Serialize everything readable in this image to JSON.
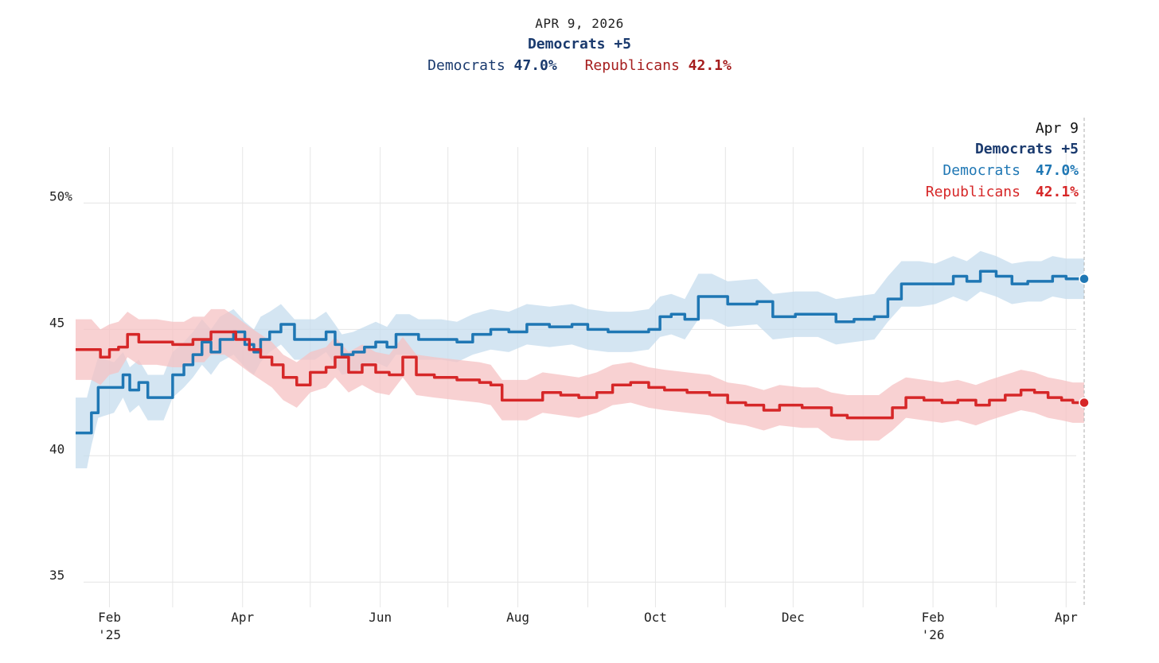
{
  "header": {
    "date": "APR 9, 2026",
    "lead": "Democrats +5",
    "dem_label": "Democrats",
    "dem_value": "47.0%",
    "rep_label": "Republicans",
    "rep_value": "42.1%"
  },
  "annotation": {
    "date": "Apr 9",
    "lead": "Democrats +5",
    "dem_label": "Democrats",
    "dem_value": "47.0%",
    "rep_label": "Republicans",
    "rep_value": "42.1%"
  },
  "colors": {
    "dem_line": "#1f77b4",
    "dem_band": "#c6dcee",
    "rep_line": "#d62728",
    "rep_band": "#f5c2c3",
    "dem_text": "#1a3a6e",
    "rep_text": "#a51d1d"
  },
  "chart_data": {
    "type": "line",
    "x_axis": {
      "range": [
        "2025-01-17",
        "2026-04-09"
      ],
      "ticks": [
        {
          "date": "2025-02-01",
          "label": "Feb",
          "sublabel": "'25"
        },
        {
          "date": "2025-04-01",
          "label": "Apr"
        },
        {
          "date": "2025-06-01",
          "label": "Jun"
        },
        {
          "date": "2025-08-01",
          "label": "Aug"
        },
        {
          "date": "2025-10-01",
          "label": "Oct"
        },
        {
          "date": "2025-12-01",
          "label": "Dec"
        },
        {
          "date": "2026-02-01",
          "label": "Feb",
          "sublabel": "'26"
        },
        {
          "date": "2026-04-01",
          "label": "Apr"
        }
      ]
    },
    "y_axis": {
      "range": [
        34,
        53
      ],
      "ticks": [
        {
          "value": 35,
          "label": "35"
        },
        {
          "value": 40,
          "label": "40"
        },
        {
          "value": 45,
          "label": "45"
        },
        {
          "value": 50,
          "label": "50%"
        }
      ]
    },
    "grid": true,
    "series": [
      {
        "name": "Democrats",
        "points": [
          [
            "2025-01-17",
            40.9
          ],
          [
            "2025-01-22",
            40.9
          ],
          [
            "2025-01-24",
            41.7
          ],
          [
            "2025-01-27",
            42.7
          ],
          [
            "2025-02-03",
            42.7
          ],
          [
            "2025-02-07",
            43.2
          ],
          [
            "2025-02-10",
            42.6
          ],
          [
            "2025-02-14",
            42.9
          ],
          [
            "2025-02-18",
            42.3
          ],
          [
            "2025-02-25",
            42.3
          ],
          [
            "2025-03-01",
            43.2
          ],
          [
            "2025-03-06",
            43.6
          ],
          [
            "2025-03-10",
            44.0
          ],
          [
            "2025-03-14",
            44.5
          ],
          [
            "2025-03-18",
            44.1
          ],
          [
            "2025-03-22",
            44.6
          ],
          [
            "2025-03-28",
            44.9
          ],
          [
            "2025-04-02",
            44.4
          ],
          [
            "2025-04-06",
            44.1
          ],
          [
            "2025-04-09",
            44.6
          ],
          [
            "2025-04-13",
            44.9
          ],
          [
            "2025-04-18",
            45.2
          ],
          [
            "2025-04-24",
            44.6
          ],
          [
            "2025-05-03",
            44.6
          ],
          [
            "2025-05-08",
            44.9
          ],
          [
            "2025-05-12",
            44.4
          ],
          [
            "2025-05-15",
            44.0
          ],
          [
            "2025-05-20",
            44.1
          ],
          [
            "2025-05-25",
            44.3
          ],
          [
            "2025-05-30",
            44.5
          ],
          [
            "2025-06-04",
            44.3
          ],
          [
            "2025-06-08",
            44.8
          ],
          [
            "2025-06-14",
            44.8
          ],
          [
            "2025-06-18",
            44.6
          ],
          [
            "2025-06-28",
            44.6
          ],
          [
            "2025-07-05",
            44.5
          ],
          [
            "2025-07-12",
            44.8
          ],
          [
            "2025-07-20",
            45.0
          ],
          [
            "2025-07-28",
            44.9
          ],
          [
            "2025-08-05",
            45.2
          ],
          [
            "2025-08-15",
            45.1
          ],
          [
            "2025-08-25",
            45.2
          ],
          [
            "2025-09-01",
            45.0
          ],
          [
            "2025-09-10",
            44.9
          ],
          [
            "2025-09-20",
            44.9
          ],
          [
            "2025-09-28",
            45.0
          ],
          [
            "2025-10-03",
            45.5
          ],
          [
            "2025-10-08",
            45.6
          ],
          [
            "2025-10-14",
            45.4
          ],
          [
            "2025-10-20",
            46.3
          ],
          [
            "2025-10-26",
            46.3
          ],
          [
            "2025-11-02",
            46.0
          ],
          [
            "2025-11-15",
            46.1
          ],
          [
            "2025-11-22",
            45.5
          ],
          [
            "2025-12-02",
            45.6
          ],
          [
            "2025-12-12",
            45.6
          ],
          [
            "2025-12-20",
            45.3
          ],
          [
            "2025-12-28",
            45.4
          ],
          [
            "2026-01-06",
            45.5
          ],
          [
            "2026-01-12",
            46.2
          ],
          [
            "2026-01-18",
            46.8
          ],
          [
            "2026-01-26",
            46.8
          ],
          [
            "2026-02-02",
            46.8
          ],
          [
            "2026-02-10",
            47.1
          ],
          [
            "2026-02-16",
            46.9
          ],
          [
            "2026-02-22",
            47.3
          ],
          [
            "2026-03-01",
            47.1
          ],
          [
            "2026-03-08",
            46.8
          ],
          [
            "2026-03-15",
            46.9
          ],
          [
            "2026-03-21",
            46.9
          ],
          [
            "2026-03-26",
            47.1
          ],
          [
            "2026-04-01",
            47.0
          ],
          [
            "2026-04-09",
            47.0
          ]
        ],
        "band_halfwidth": [
          1.4,
          1.4,
          1.3,
          1.2,
          1.0,
          0.9,
          0.9,
          0.9,
          0.9,
          0.9,
          0.9,
          0.9,
          0.9,
          0.9,
          0.9,
          0.9,
          0.9,
          0.9,
          0.9,
          0.9,
          0.8,
          0.8,
          0.8,
          0.8,
          0.8,
          0.8,
          0.8,
          0.8,
          0.8,
          0.8,
          0.8,
          0.8,
          0.8,
          0.8,
          0.8,
          0.8,
          0.8,
          0.8,
          0.8,
          0.8,
          0.8,
          0.8,
          0.8,
          0.8,
          0.8,
          0.8,
          0.8,
          0.8,
          0.8,
          0.9,
          0.9,
          0.9,
          0.9,
          0.9,
          0.9,
          0.9,
          0.9,
          0.9,
          0.9,
          0.9,
          0.9,
          0.9,
          0.8,
          0.8,
          0.8,
          0.8,
          0.8,
          0.8,
          0.8,
          0.8,
          0.8,
          0.8,
          0.8
        ]
      },
      {
        "name": "Republicans",
        "points": [
          [
            "2025-01-17",
            44.2
          ],
          [
            "2025-01-24",
            44.2
          ],
          [
            "2025-01-28",
            43.9
          ],
          [
            "2025-02-01",
            44.2
          ],
          [
            "2025-02-05",
            44.3
          ],
          [
            "2025-02-09",
            44.8
          ],
          [
            "2025-02-14",
            44.5
          ],
          [
            "2025-02-22",
            44.5
          ],
          [
            "2025-03-01",
            44.4
          ],
          [
            "2025-03-06",
            44.4
          ],
          [
            "2025-03-10",
            44.6
          ],
          [
            "2025-03-15",
            44.6
          ],
          [
            "2025-03-18",
            44.9
          ],
          [
            "2025-03-24",
            44.9
          ],
          [
            "2025-03-29",
            44.6
          ],
          [
            "2025-04-04",
            44.2
          ],
          [
            "2025-04-09",
            43.9
          ],
          [
            "2025-04-14",
            43.6
          ],
          [
            "2025-04-19",
            43.1
          ],
          [
            "2025-04-25",
            42.8
          ],
          [
            "2025-05-01",
            43.3
          ],
          [
            "2025-05-08",
            43.5
          ],
          [
            "2025-05-12",
            43.9
          ],
          [
            "2025-05-18",
            43.3
          ],
          [
            "2025-05-24",
            43.6
          ],
          [
            "2025-05-30",
            43.3
          ],
          [
            "2025-06-05",
            43.2
          ],
          [
            "2025-06-11",
            43.9
          ],
          [
            "2025-06-17",
            43.2
          ],
          [
            "2025-06-25",
            43.1
          ],
          [
            "2025-07-05",
            43.0
          ],
          [
            "2025-07-15",
            42.9
          ],
          [
            "2025-07-20",
            42.8
          ],
          [
            "2025-07-25",
            42.2
          ],
          [
            "2025-08-05",
            42.2
          ],
          [
            "2025-08-12",
            42.5
          ],
          [
            "2025-08-20",
            42.4
          ],
          [
            "2025-08-28",
            42.3
          ],
          [
            "2025-09-05",
            42.5
          ],
          [
            "2025-09-12",
            42.8
          ],
          [
            "2025-09-20",
            42.9
          ],
          [
            "2025-09-28",
            42.7
          ],
          [
            "2025-10-05",
            42.6
          ],
          [
            "2025-10-15",
            42.5
          ],
          [
            "2025-10-25",
            42.4
          ],
          [
            "2025-11-02",
            42.1
          ],
          [
            "2025-11-10",
            42.0
          ],
          [
            "2025-11-18",
            41.8
          ],
          [
            "2025-11-25",
            42.0
          ],
          [
            "2025-12-05",
            41.9
          ],
          [
            "2025-12-12",
            41.9
          ],
          [
            "2025-12-18",
            41.6
          ],
          [
            "2025-12-25",
            41.5
          ],
          [
            "2026-01-01",
            41.5
          ],
          [
            "2026-01-08",
            41.5
          ],
          [
            "2026-01-14",
            41.9
          ],
          [
            "2026-01-20",
            42.3
          ],
          [
            "2026-01-28",
            42.2
          ],
          [
            "2026-02-05",
            42.1
          ],
          [
            "2026-02-12",
            42.2
          ],
          [
            "2026-02-20",
            42.0
          ],
          [
            "2026-02-26",
            42.2
          ],
          [
            "2026-03-05",
            42.4
          ],
          [
            "2026-03-12",
            42.6
          ],
          [
            "2026-03-18",
            42.5
          ],
          [
            "2026-03-24",
            42.3
          ],
          [
            "2026-03-30",
            42.2
          ],
          [
            "2026-04-04",
            42.1
          ],
          [
            "2026-04-09",
            42.1
          ]
        ],
        "band_halfwidth": [
          1.2,
          1.2,
          1.1,
          1.0,
          1.0,
          0.9,
          0.9,
          0.9,
          0.9,
          0.9,
          0.9,
          0.9,
          0.9,
          0.9,
          0.9,
          0.9,
          0.9,
          0.9,
          0.9,
          0.9,
          0.8,
          0.8,
          0.8,
          0.8,
          0.8,
          0.8,
          0.8,
          0.8,
          0.8,
          0.8,
          0.8,
          0.8,
          0.8,
          0.8,
          0.8,
          0.8,
          0.8,
          0.8,
          0.8,
          0.8,
          0.8,
          0.8,
          0.8,
          0.8,
          0.8,
          0.8,
          0.8,
          0.8,
          0.8,
          0.8,
          0.8,
          0.9,
          0.9,
          0.9,
          0.9,
          0.9,
          0.8,
          0.8,
          0.8,
          0.8,
          0.8,
          0.8,
          0.8,
          0.8,
          0.8,
          0.8,
          0.8,
          0.8,
          0.8
        ]
      }
    ]
  }
}
